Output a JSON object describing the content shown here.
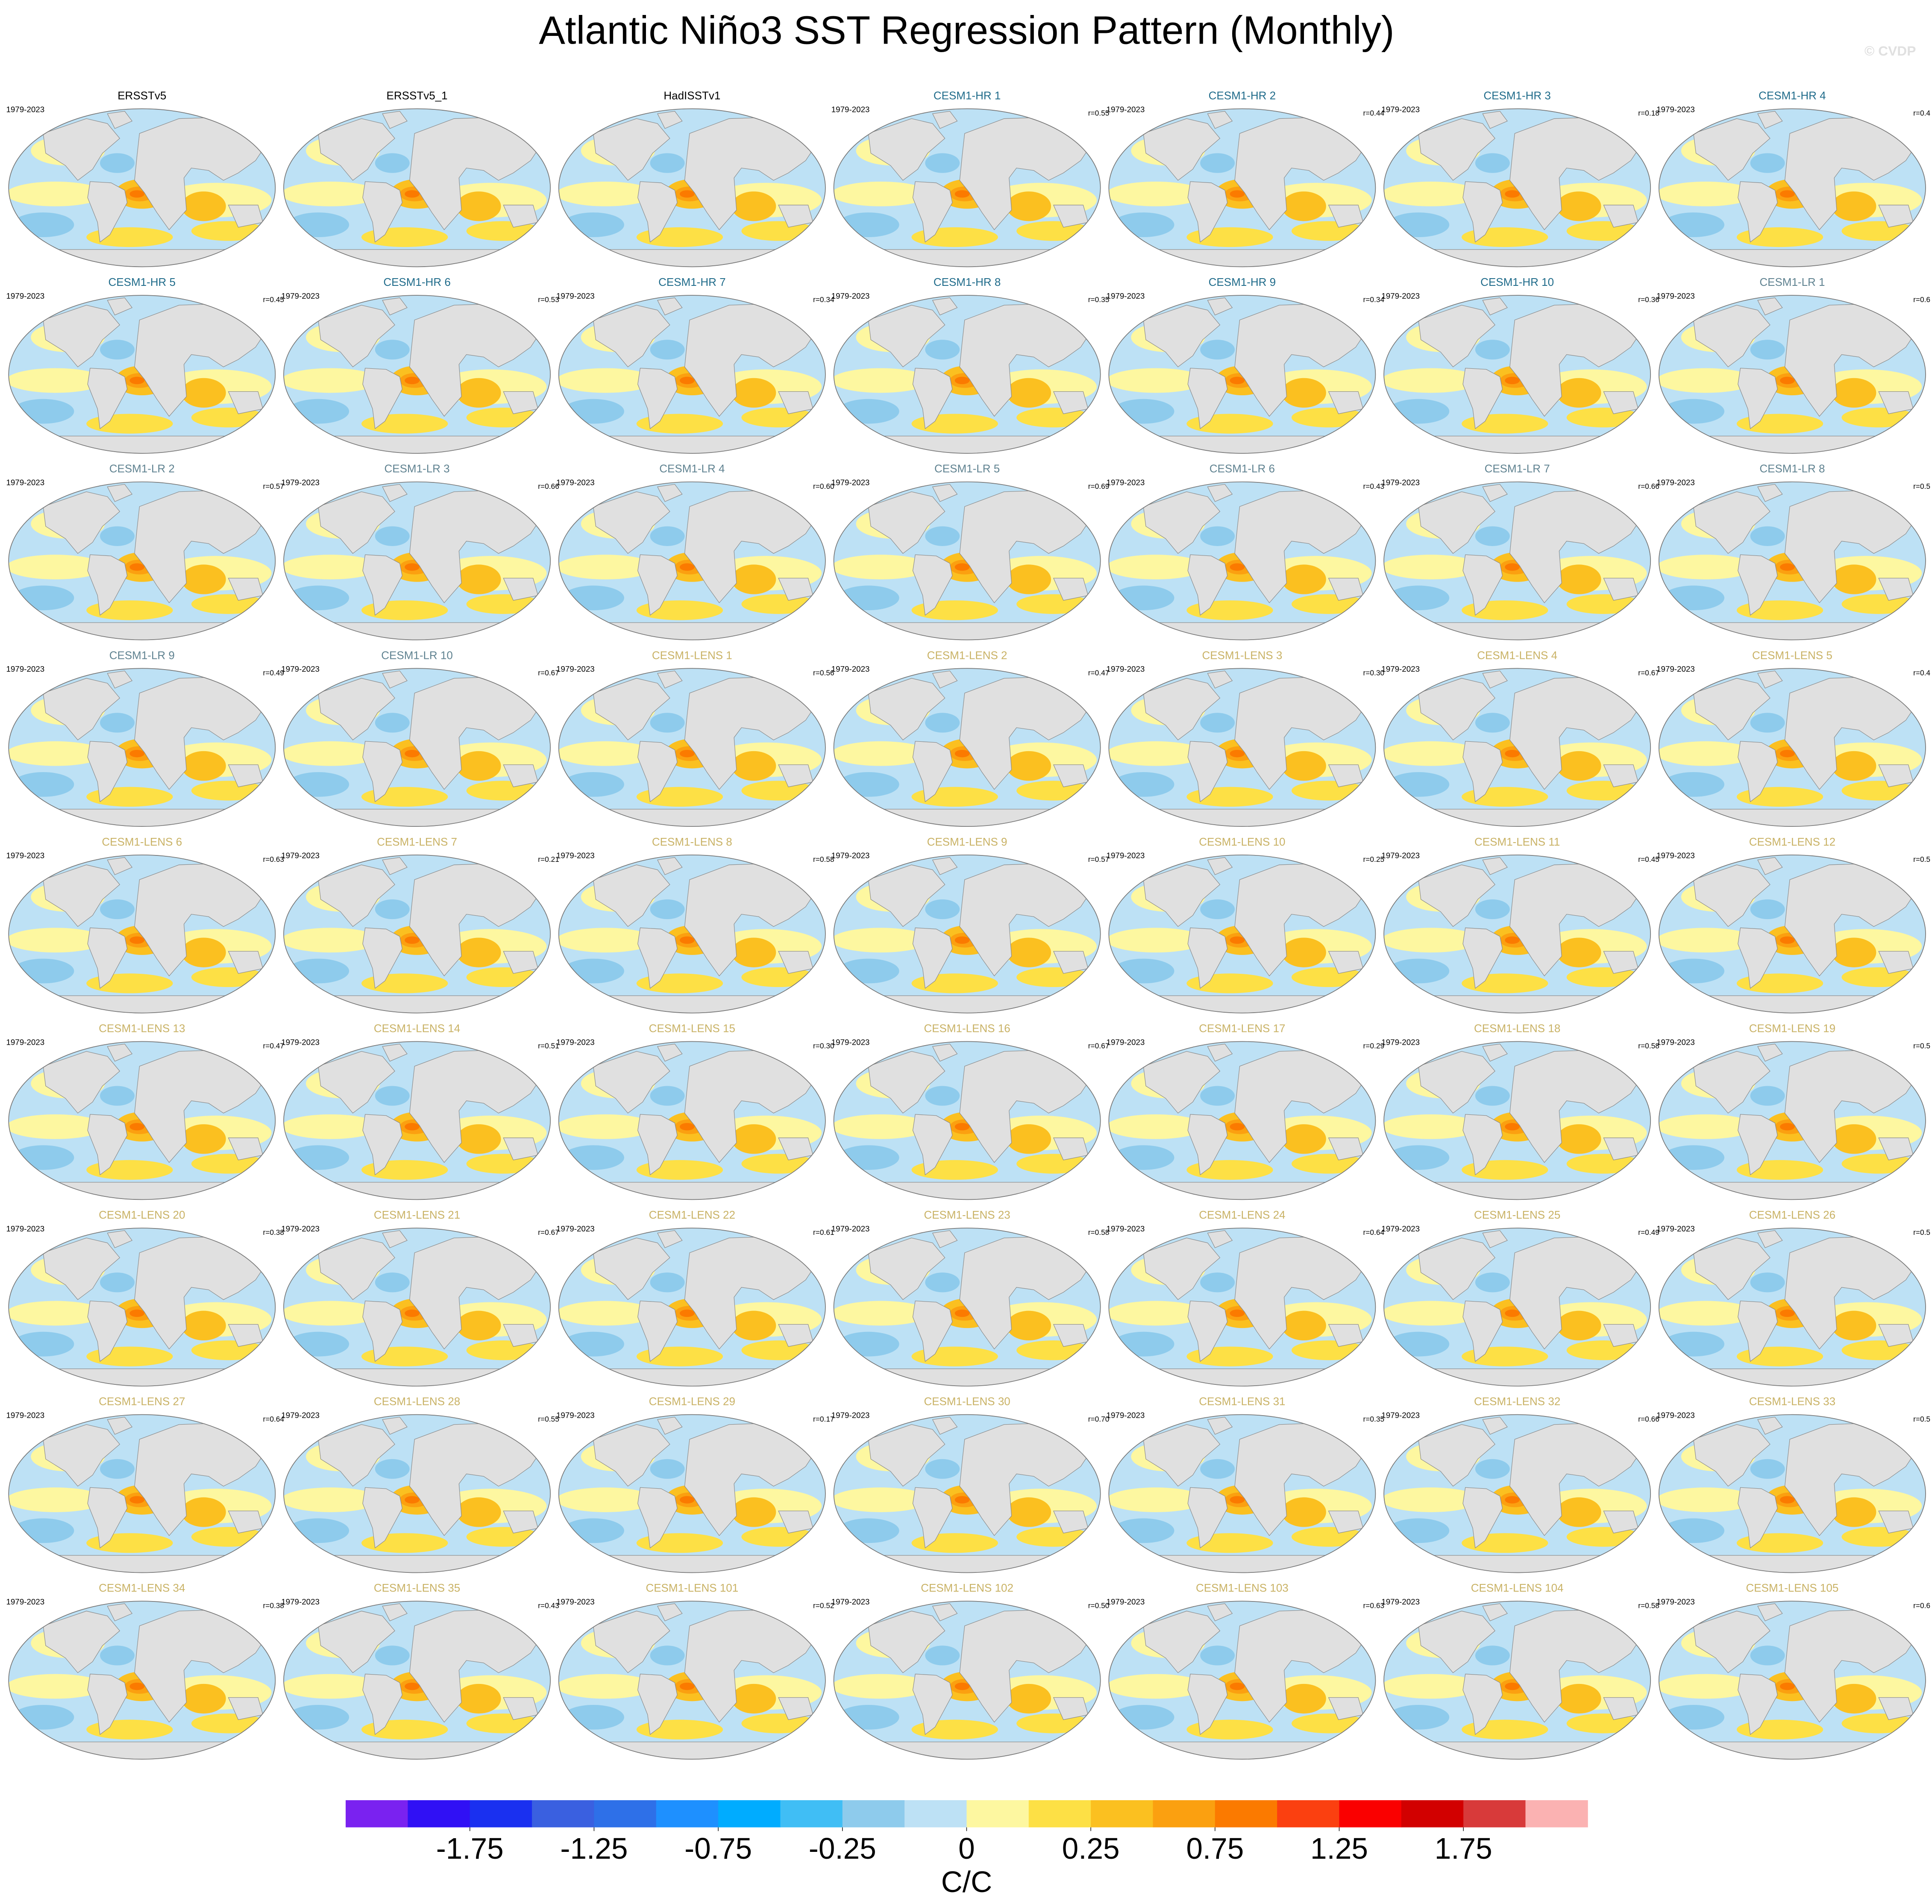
{
  "title": "Atlantic Niño3 SST Regression Pattern (Monthly)",
  "watermark": "© CVDP",
  "panels": [
    {
      "title": "ERSSTv5",
      "period": "1979-2023",
      "color": "#000000"
    },
    {
      "title": "ERSSTv5_1",
      "color": "#000000"
    },
    {
      "title": "HadISSTv1",
      "color": "#000000"
    },
    {
      "title": "CESM1-HR 1",
      "period": "1979-2023",
      "correlation": "r=0.55",
      "color": "#1f6b8a"
    },
    {
      "title": "CESM1-HR 2",
      "period": "1979-2023",
      "correlation": "r=0.44",
      "color": "#1f6b8a"
    },
    {
      "title": "CESM1-HR 3",
      "period": "1979-2023",
      "correlation": "r=0.18",
      "color": "#1f6b8a"
    },
    {
      "title": "CESM1-HR 4",
      "period": "1979-2023",
      "correlation": "r=0.4",
      "color": "#1f6b8a"
    },
    {
      "title": "CESM1-HR 5",
      "period": "1979-2023",
      "correlation": "r=0.45",
      "color": "#1f6b8a"
    },
    {
      "title": "CESM1-HR 6",
      "period": "1979-2023",
      "correlation": "r=0.53",
      "color": "#1f6b8a"
    },
    {
      "title": "CESM1-HR 7",
      "period": "1979-2023",
      "correlation": "r=0.34",
      "color": "#1f6b8a"
    },
    {
      "title": "CESM1-HR 8",
      "period": "1979-2023",
      "correlation": "r=0.35",
      "color": "#1f6b8a"
    },
    {
      "title": "CESM1-HR 9",
      "period": "1979-2023",
      "correlation": "r=0.34",
      "color": "#1f6b8a"
    },
    {
      "title": "CESM1-HR 10",
      "period": "1979-2023",
      "correlation": "r=0.36",
      "color": "#1f6b8a"
    },
    {
      "title": "CESM1-LR 1",
      "period": "1979-2023",
      "correlation": "r=0.6",
      "color": "#5f8290"
    },
    {
      "title": "CESM1-LR 2",
      "period": "1979-2023",
      "correlation": "r=0.57",
      "color": "#5f8290"
    },
    {
      "title": "CESM1-LR 3",
      "period": "1979-2023",
      "correlation": "r=0.66",
      "color": "#5f8290"
    },
    {
      "title": "CESM1-LR 4",
      "period": "1979-2023",
      "correlation": "r=0.60",
      "color": "#5f8290"
    },
    {
      "title": "CESM1-LR 5",
      "period": "1979-2023",
      "correlation": "r=0.69",
      "color": "#5f8290"
    },
    {
      "title": "CESM1-LR 6",
      "period": "1979-2023",
      "correlation": "r=0.43",
      "color": "#5f8290"
    },
    {
      "title": "CESM1-LR 7",
      "period": "1979-2023",
      "correlation": "r=0.66",
      "color": "#5f8290"
    },
    {
      "title": "CESM1-LR 8",
      "period": "1979-2023",
      "correlation": "r=0.5",
      "color": "#5f8290"
    },
    {
      "title": "CESM1-LR 9",
      "period": "1979-2023",
      "correlation": "r=0.49",
      "color": "#5f8290"
    },
    {
      "title": "CESM1-LR 10",
      "period": "1979-2023",
      "correlation": "r=0.67",
      "color": "#5f8290"
    },
    {
      "title": "CESM1-LENS 1",
      "period": "1979-2023",
      "correlation": "r=0.56",
      "color": "#c9b265"
    },
    {
      "title": "CESM1-LENS 2",
      "period": "1979-2023",
      "correlation": "r=0.47",
      "color": "#c9b265"
    },
    {
      "title": "CESM1-LENS 3",
      "period": "1979-2023",
      "correlation": "r=0.30",
      "color": "#c9b265"
    },
    {
      "title": "CESM1-LENS 4",
      "period": "1979-2023",
      "correlation": "r=0.67",
      "color": "#c9b265"
    },
    {
      "title": "CESM1-LENS 5",
      "period": "1979-2023",
      "correlation": "r=0.4",
      "color": "#c9b265"
    },
    {
      "title": "CESM1-LENS 6",
      "period": "1979-2023",
      "correlation": "r=0.63",
      "color": "#c9b265"
    },
    {
      "title": "CESM1-LENS 7",
      "period": "1979-2023",
      "correlation": "r=0.21",
      "color": "#c9b265"
    },
    {
      "title": "CESM1-LENS 8",
      "period": "1979-2023",
      "correlation": "r=0.58",
      "color": "#c9b265"
    },
    {
      "title": "CESM1-LENS 9",
      "period": "1979-2023",
      "correlation": "r=0.57",
      "color": "#c9b265"
    },
    {
      "title": "CESM1-LENS 10",
      "period": "1979-2023",
      "correlation": "r=0.25",
      "color": "#c9b265"
    },
    {
      "title": "CESM1-LENS 11",
      "period": "1979-2023",
      "correlation": "r=0.45",
      "color": "#c9b265"
    },
    {
      "title": "CESM1-LENS 12",
      "period": "1979-2023",
      "correlation": "r=0.5",
      "color": "#c9b265"
    },
    {
      "title": "CESM1-LENS 13",
      "period": "1979-2023",
      "correlation": "r=0.47",
      "color": "#c9b265"
    },
    {
      "title": "CESM1-LENS 14",
      "period": "1979-2023",
      "correlation": "r=0.51",
      "color": "#c9b265"
    },
    {
      "title": "CESM1-LENS 15",
      "period": "1979-2023",
      "correlation": "r=0.30",
      "color": "#c9b265"
    },
    {
      "title": "CESM1-LENS 16",
      "period": "1979-2023",
      "correlation": "r=0.67",
      "color": "#c9b265"
    },
    {
      "title": "CESM1-LENS 17",
      "period": "1979-2023",
      "correlation": "r=0.29",
      "color": "#c9b265"
    },
    {
      "title": "CESM1-LENS 18",
      "period": "1979-2023",
      "correlation": "r=0.58",
      "color": "#c9b265"
    },
    {
      "title": "CESM1-LENS 19",
      "period": "1979-2023",
      "correlation": "r=0.5",
      "color": "#c9b265"
    },
    {
      "title": "CESM1-LENS 20",
      "period": "1979-2023",
      "correlation": "r=0.38",
      "color": "#c9b265"
    },
    {
      "title": "CESM1-LENS 21",
      "period": "1979-2023",
      "correlation": "r=0.67",
      "color": "#c9b265"
    },
    {
      "title": "CESM1-LENS 22",
      "period": "1979-2023",
      "correlation": "r=0.61",
      "color": "#c9b265"
    },
    {
      "title": "CESM1-LENS 23",
      "period": "1979-2023",
      "correlation": "r=0.58",
      "color": "#c9b265"
    },
    {
      "title": "CESM1-LENS 24",
      "period": "1979-2023",
      "correlation": "r=0.64",
      "color": "#c9b265"
    },
    {
      "title": "CESM1-LENS 25",
      "period": "1979-2023",
      "correlation": "r=0.49",
      "color": "#c9b265"
    },
    {
      "title": "CESM1-LENS 26",
      "period": "1979-2023",
      "correlation": "r=0.5",
      "color": "#c9b265"
    },
    {
      "title": "CESM1-LENS 27",
      "period": "1979-2023",
      "correlation": "r=0.64",
      "color": "#c9b265"
    },
    {
      "title": "CESM1-LENS 28",
      "period": "1979-2023",
      "correlation": "r=0.55",
      "color": "#c9b265"
    },
    {
      "title": "CESM1-LENS 29",
      "period": "1979-2023",
      "correlation": "r=0.17",
      "color": "#c9b265"
    },
    {
      "title": "CESM1-LENS 30",
      "period": "1979-2023",
      "correlation": "r=0.70",
      "color": "#c9b265"
    },
    {
      "title": "CESM1-LENS 31",
      "period": "1979-2023",
      "correlation": "r=0.35",
      "color": "#c9b265"
    },
    {
      "title": "CESM1-LENS 32",
      "period": "1979-2023",
      "correlation": "r=0.66",
      "color": "#c9b265"
    },
    {
      "title": "CESM1-LENS 33",
      "period": "1979-2023",
      "correlation": "r=0.5",
      "color": "#c9b265"
    },
    {
      "title": "CESM1-LENS 34",
      "period": "1979-2023",
      "correlation": "r=0.38",
      "color": "#c9b265"
    },
    {
      "title": "CESM1-LENS 35",
      "period": "1979-2023",
      "correlation": "r=0.43",
      "color": "#c9b265"
    },
    {
      "title": "CESM1-LENS 101",
      "period": "1979-2023",
      "correlation": "r=0.52",
      "color": "#c9b265"
    },
    {
      "title": "CESM1-LENS 102",
      "period": "1979-2023",
      "correlation": "r=0.50",
      "color": "#c9b265"
    },
    {
      "title": "CESM1-LENS 103",
      "period": "1979-2023",
      "correlation": "r=0.63",
      "color": "#c9b265"
    },
    {
      "title": "CESM1-LENS 104",
      "period": "1979-2023",
      "correlation": "r=0.58",
      "color": "#c9b265"
    },
    {
      "title": "CESM1-LENS 105",
      "period": "1979-2023",
      "correlation": "r=0.6",
      "color": "#c9b265"
    }
  ],
  "colorbar": {
    "label": "C/C",
    "levels": [
      -2,
      -1.75,
      -1.5,
      -1.25,
      -1,
      -0.75,
      -0.5,
      -0.25,
      -0.1,
      0,
      0.1,
      0.25,
      0.5,
      0.75,
      1,
      1.25,
      1.5,
      1.75,
      2
    ],
    "colors": [
      "#7a22f0",
      "#3010f5",
      "#1a30f0",
      "#3a60e0",
      "#2e70e8",
      "#1e90ff",
      "#00acff",
      "#40bef5",
      "#8ecbec",
      "#bde1f5",
      "#fdf7a0",
      "#fde045",
      "#fbc020",
      "#fba010",
      "#fb7a00",
      "#fb4010",
      "#fa0000",
      "#d20000",
      "#d83a3a",
      "#fbb2b2"
    ],
    "ticks": [
      -1.75,
      -1.25,
      -0.75,
      -0.25,
      0,
      0.25,
      0.75,
      1.25,
      1.75
    ]
  }
}
